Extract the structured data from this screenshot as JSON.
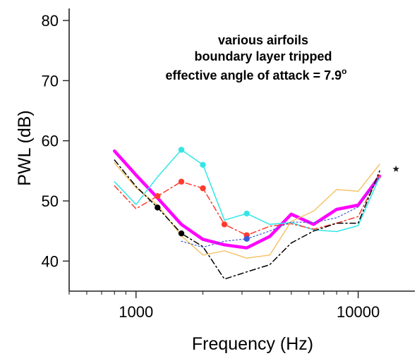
{
  "chart_data": {
    "type": "line",
    "xlabel": "Frequency (Hz)",
    "ylabel": "PWL (dB)",
    "xscale": "log",
    "xlim": [
      500,
      18000
    ],
    "ylim": [
      35,
      82
    ],
    "x_tick_labels": [
      "1000",
      "10000"
    ],
    "y_ticks": [
      40,
      50,
      60,
      70,
      80
    ],
    "annotation": {
      "line1": "various airfoils",
      "line2": "boundary layer tripped",
      "line3": "effective angle of attack = 7.9",
      "degree": "o"
    },
    "series": [
      {
        "color": "#ff00ff",
        "style": "solid",
        "width": 4.5,
        "x": [
          800,
          1000,
          1250,
          1600,
          2000,
          2500,
          3150,
          4000,
          5000,
          6300,
          8000,
          10000,
          12500
        ],
        "y": [
          58.3,
          54.3,
          50.5,
          46.1,
          43.6,
          42.7,
          42.2,
          44.1,
          47.8,
          46.1,
          48.6,
          49.3,
          54.1
        ]
      },
      {
        "color": "#33e6e6",
        "style": "solid",
        "width": 1.5,
        "markers": [
          3,
          4,
          6
        ],
        "x": [
          800,
          1000,
          1250,
          1600,
          2000,
          2500,
          3150,
          4000,
          5000,
          6300,
          8000,
          10000,
          12500
        ],
        "y": [
          53.2,
          49.4,
          54.0,
          58.5,
          56.0,
          46.8,
          47.9,
          46.1,
          46.4,
          45.2,
          44.9,
          45.9,
          54.0
        ]
      },
      {
        "color": "#ff3b2f",
        "style": "dashdot",
        "width": 1.5,
        "markers": [
          2,
          3,
          4,
          5,
          6
        ],
        "x": [
          800,
          1000,
          1250,
          1600,
          2000,
          2500,
          3150,
          4000,
          5000,
          6300,
          8000,
          10000,
          12500
        ],
        "y": [
          52.5,
          48.7,
          50.8,
          53.2,
          52.1,
          46.1,
          44.3,
          45.8,
          46.2,
          45.3,
          46.3,
          47.4,
          54.5
        ]
      },
      {
        "color": "#f5c46a",
        "style": "solid",
        "width": 1.5,
        "x": [
          800,
          1000,
          1250,
          1600,
          2000,
          2500,
          3150,
          4000,
          5000,
          6300,
          8000,
          10000,
          12500
        ],
        "y": [
          56.3,
          52.2,
          49.3,
          44.2,
          41.0,
          41.7,
          40.5,
          41.0,
          46.6,
          48.3,
          51.9,
          51.6,
          56.1
        ]
      },
      {
        "color": "#000000",
        "style": "dashdot",
        "width": 1.5,
        "markers": [
          2,
          3
        ],
        "x": [
          800,
          1000,
          1250,
          1600,
          2000,
          2500,
          3150,
          4000,
          5000,
          6300,
          8000,
          10000,
          12500
        ],
        "y": [
          56.8,
          52.4,
          48.9,
          44.6,
          42.4,
          37.0,
          38.2,
          39.4,
          43.0,
          45.0,
          46.3,
          46.3,
          55.0
        ]
      },
      {
        "color": "#3a5bd9",
        "style": "dotted",
        "width": 1.2,
        "markers": [
          3
        ],
        "x": [
          1600,
          2000,
          2500,
          3150,
          4000,
          5000,
          6300,
          8000,
          10000,
          12500
        ],
        "y": [
          43.3,
          42.3,
          43.3,
          43.7,
          45.0,
          46.5,
          46.4,
          47.2,
          49.0,
          54.0
        ]
      }
    ],
    "star_point": {
      "x": 14800,
      "y": 55.3
    }
  }
}
